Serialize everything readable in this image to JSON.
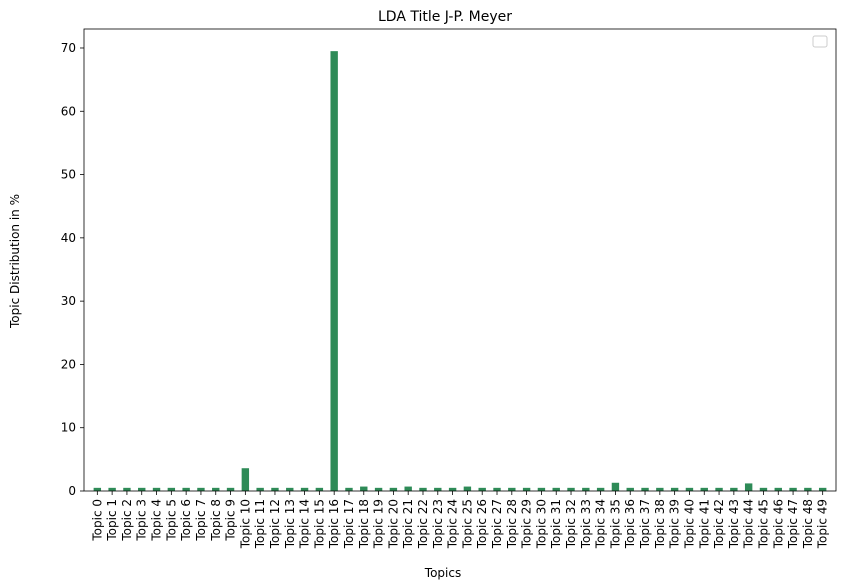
{
  "chart_data": {
    "type": "bar",
    "title": "LDA Title J-P. Meyer",
    "xlabel": "Topics",
    "ylabel": "Topic Distribution in %",
    "ylim": [
      0,
      73
    ],
    "yticks": [
      0,
      10,
      20,
      30,
      40,
      50,
      60,
      70
    ],
    "grid": false,
    "legend": "top-right",
    "bar_color": "#2e8b57",
    "categories": [
      "Topic 0",
      "Topic 1",
      "Topic 2",
      "Topic 3",
      "Topic 4",
      "Topic 5",
      "Topic 6",
      "Topic 7",
      "Topic 8",
      "Topic 9",
      "Topic 10",
      "Topic 11",
      "Topic 12",
      "Topic 13",
      "Topic 14",
      "Topic 15",
      "Topic 16",
      "Topic 17",
      "Topic 18",
      "Topic 19",
      "Topic 20",
      "Topic 21",
      "Topic 22",
      "Topic 23",
      "Topic 24",
      "Topic 25",
      "Topic 26",
      "Topic 27",
      "Topic 28",
      "Topic 29",
      "Topic 30",
      "Topic 31",
      "Topic 32",
      "Topic 33",
      "Topic 34",
      "Topic 35",
      "Topic 36",
      "Topic 37",
      "Topic 38",
      "Topic 39",
      "Topic 40",
      "Topic 41",
      "Topic 42",
      "Topic 43",
      "Topic 44",
      "Topic 45",
      "Topic 46",
      "Topic 47",
      "Topic 48",
      "Topic 49"
    ],
    "values": [
      0.5,
      0.5,
      0.5,
      0.5,
      0.5,
      0.5,
      0.5,
      0.5,
      0.5,
      0.5,
      3.6,
      0.5,
      0.5,
      0.5,
      0.5,
      0.5,
      69.5,
      0.5,
      0.7,
      0.5,
      0.5,
      0.7,
      0.5,
      0.5,
      0.5,
      0.7,
      0.5,
      0.5,
      0.5,
      0.5,
      0.5,
      0.5,
      0.5,
      0.5,
      0.5,
      1.3,
      0.5,
      0.5,
      0.5,
      0.5,
      0.5,
      0.5,
      0.5,
      0.5,
      1.2,
      0.5,
      0.5,
      0.5,
      0.5,
      0.5
    ]
  }
}
